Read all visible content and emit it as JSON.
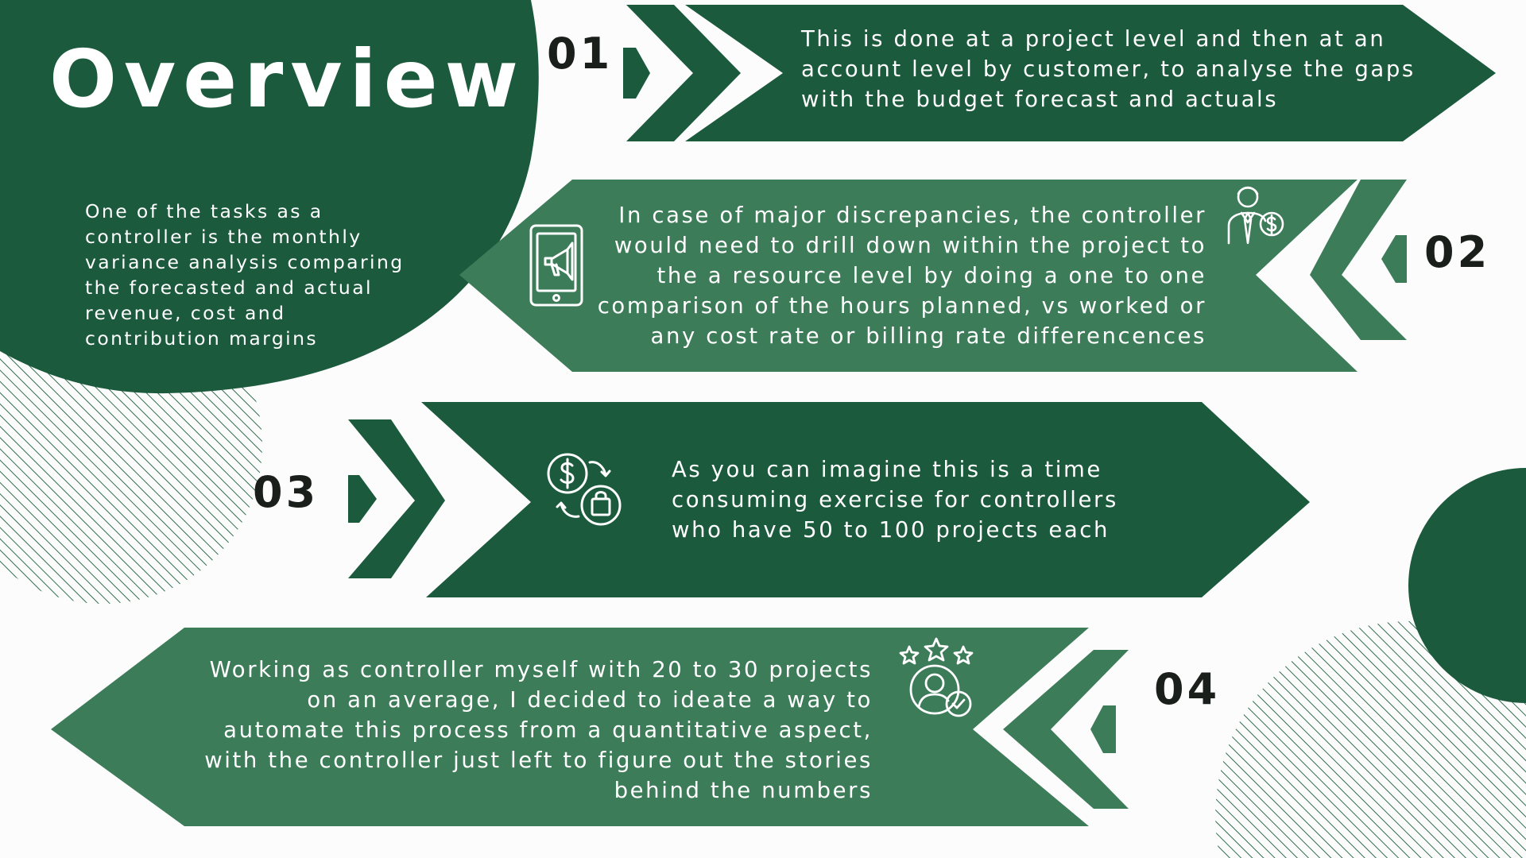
{
  "title": "Overview",
  "intro_text": "One of the tasks as a controller is the monthly variance analysis comparing the forecasted and actual revenue, cost and contribution margins",
  "colors": {
    "dark_green": "#1b5a3c",
    "mid_green": "#3d7c59",
    "background": "#fdfcfd",
    "number_text": "#1a1f1c"
  },
  "steps": [
    {
      "number": "01",
      "lines": [
        "This is done at a project level and then at an",
        "account level by customer, to analyse the gaps",
        "with the budget forecast and actuals"
      ],
      "icon": "none"
    },
    {
      "number": "02",
      "lines": [
        "In case of major discrepancies, the controller",
        "would need to drill down within the project to",
        "the  a resource level by doing a one to one",
        "comparison of the hours planned, vs worked or",
        "any cost rate or billing rate differencences"
      ],
      "icons": [
        "phone-megaphone-icon",
        "businessman-dollar-icon"
      ]
    },
    {
      "number": "03",
      "lines": [
        "As you can imagine this is a time",
        "consuming exercise for controllers",
        "who have 50 to 100 projects each"
      ],
      "icon": "dollar-bag-exchange-icon"
    },
    {
      "number": "04",
      "lines": [
        "Working as  controller myself with 20 to 30 projects",
        "on an average, I decided to ideate a way to",
        "automate this process from a quantitative aspect,",
        "with the controller just left to figure out the stories",
        "behind the numbers"
      ],
      "icon": "user-rating-check-icon"
    }
  ]
}
